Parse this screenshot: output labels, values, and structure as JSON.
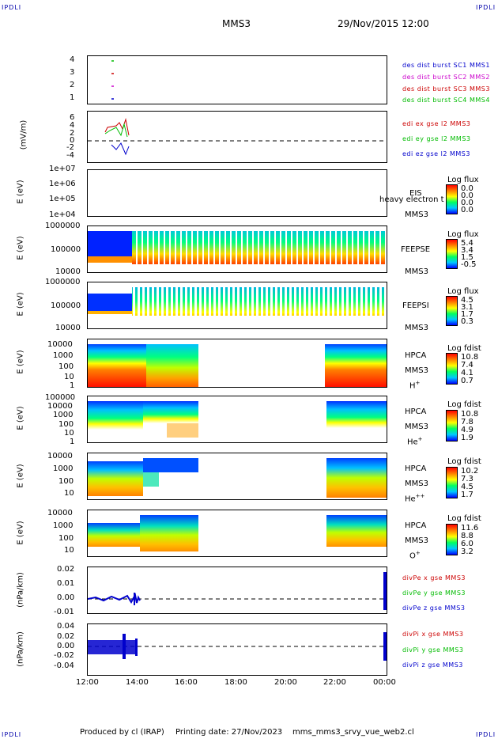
{
  "corners": {
    "tl": "IPDLI",
    "tr": "IPDLI",
    "bl": "IPDLI",
    "br": "IPDLI"
  },
  "header": {
    "title": "MMS3",
    "date": "29/Nov/2015 12:00"
  },
  "x_ticks": [
    "12:00",
    "14:00",
    "16:00",
    "18:00",
    "20:00",
    "22:00",
    "00:00"
  ],
  "footer": {
    "produced": "Produced by cl (IRAP)",
    "printing": "Printing date: 27/Nov/2023",
    "file": "mms_mms3_srvy_vue_web2.cl"
  },
  "colors": {
    "blue": "#0000cc",
    "red": "#cc0000",
    "green": "#00bb00",
    "magenta": "#cc00cc"
  },
  "panels": {
    "p1": {
      "ticks": [
        "4",
        "3",
        "2",
        "1"
      ],
      "legend": [
        "des dist burst SC1 MMS1",
        "des dist burst SC2 MMS2",
        "des dist burst SC3 MMS3",
        "des dist burst SC4 MMS4"
      ]
    },
    "p2": {
      "ylabel": "(mV/m)",
      "ticks": [
        "6",
        "4",
        "2",
        "0",
        "-2",
        "-4"
      ],
      "legend": [
        "edi ex gse l2 MMS3",
        "edi ey gse l2 MMS3",
        "edi ez gse l2 MMS3"
      ]
    },
    "p3": {
      "ylabel": "E (eV)",
      "ticks": [
        "1e+07",
        "1e+06",
        "1e+05",
        "1e+04"
      ],
      "name": "EIS",
      "name2": "MMS3",
      "overlay": "heavy electron to",
      "cb_title": "Log flux",
      "cb": [
        "0.0",
        "0.0",
        "0.0",
        "0.0"
      ]
    },
    "p4": {
      "ylabel": "E (eV)",
      "ticks": [
        "1000000",
        "100000",
        "10000"
      ],
      "name": "FEEPSE",
      "name2": "MMS3",
      "cb_title": "Log flux",
      "cb": [
        "5.4",
        "3.4",
        "1.5",
        "-0.5"
      ]
    },
    "p5": {
      "ylabel": "E (eV)",
      "ticks": [
        "1000000",
        "100000",
        "10000"
      ],
      "name": "FEEPSI",
      "name2": "MMS3",
      "cb_title": "Log flux",
      "cb": [
        "4.5",
        "3.1",
        "1.7",
        "0.3"
      ]
    },
    "p6": {
      "ylabel": "E (eV)",
      "ticks": [
        "10000",
        "1000",
        "100",
        "10",
        "1"
      ],
      "name": "HPCA",
      "name2": "MMS3",
      "species": "H",
      "sup": "+",
      "cb_title": "Log fdist",
      "cb": [
        "10.8",
        "7.4",
        "4.1",
        "0.7"
      ]
    },
    "p7": {
      "ylabel": "E (eV)",
      "ticks": [
        "100000",
        "10000",
        "1000",
        "100",
        "10",
        "1"
      ],
      "name": "HPCA",
      "name2": "MMS3",
      "species": "He",
      "sup": "+",
      "cb_title": "Log fdist",
      "cb": [
        "10.8",
        "7.8",
        "4.9",
        "1.9"
      ]
    },
    "p8": {
      "ylabel": "E (eV)",
      "ticks": [
        "10000",
        "1000",
        "100",
        "10"
      ],
      "name": "HPCA",
      "name2": "MMS3",
      "species": "He",
      "sup": "++",
      "cb_title": "Log fdist",
      "cb": [
        "10.2",
        "7.3",
        "4.5",
        "1.7"
      ]
    },
    "p9": {
      "ylabel": "E (eV)",
      "ticks": [
        "10000",
        "1000",
        "100",
        "10"
      ],
      "name": "HPCA",
      "name2": "MMS3",
      "species": "O",
      "sup": "+",
      "cb_title": "Log fdist",
      "cb": [
        "11.6",
        "8.8",
        "6.0",
        "3.2"
      ]
    },
    "p10": {
      "ylabel": "(nPa/km)",
      "ticks": [
        "0.02",
        "0.01",
        "0.00",
        "-0.01"
      ],
      "legend": [
        "divPe x gse MMS3",
        "divPe y gse MMS3",
        "divPe z gse MMS3"
      ]
    },
    "p11": {
      "ylabel": "(nPa/km)",
      "ticks": [
        "0.04",
        "0.02",
        "0.00",
        "-0.02",
        "-0.04"
      ],
      "legend": [
        "divPi x gse MMS3",
        "divPi y gse MMS3",
        "divPi z gse MMS3"
      ]
    }
  },
  "chart_data": [
    {
      "type": "scatter",
      "title": "",
      "ylabel": "",
      "ylim": [
        1,
        4
      ],
      "series": [
        {
          "name": "des dist burst SC1 MMS1",
          "x": [
            "13:00"
          ],
          "values": [
            1
          ]
        },
        {
          "name": "des dist burst SC2 MMS2",
          "x": [
            "13:00"
          ],
          "values": [
            2
          ]
        },
        {
          "name": "des dist burst SC3 MMS3",
          "x": [
            "13:00"
          ],
          "values": [
            3
          ]
        },
        {
          "name": "des dist burst SC4 MMS4",
          "x": [
            "13:00"
          ],
          "values": [
            4
          ]
        }
      ]
    },
    {
      "type": "line",
      "ylabel": "(mV/m)",
      "ylim": [
        -4,
        6
      ],
      "series": [
        {
          "name": "edi ex gse l2 MMS3",
          "x": [
            "13:00",
            "13:20",
            "13:40"
          ],
          "values": [
            3,
            2,
            5
          ]
        },
        {
          "name": "edi ey gse l2 MMS3",
          "x": [
            "13:00",
            "13:20",
            "13:40"
          ],
          "values": [
            2,
            3,
            1
          ]
        },
        {
          "name": "edi ez gse l2 MMS3",
          "x": [
            "13:00",
            "13:20",
            "13:40"
          ],
          "values": [
            -1,
            -2,
            -3
          ]
        }
      ]
    },
    {
      "type": "heatmap",
      "ylabel": "E (eV)",
      "name": "EIS",
      "colorbar": "Log flux"
    },
    {
      "type": "heatmap",
      "ylabel": "E (eV)",
      "name": "FEEPSE",
      "colorbar": "Log flux"
    },
    {
      "type": "heatmap",
      "ylabel": "E (eV)",
      "name": "FEEPSI",
      "colorbar": "Log flux"
    },
    {
      "type": "heatmap",
      "ylabel": "E (eV)",
      "name": "HPCA H+",
      "colorbar": "Log fdist"
    },
    {
      "type": "heatmap",
      "ylabel": "E (eV)",
      "name": "HPCA He+",
      "colorbar": "Log fdist"
    },
    {
      "type": "heatmap",
      "ylabel": "E (eV)",
      "name": "HPCA He++",
      "colorbar": "Log fdist"
    },
    {
      "type": "heatmap",
      "ylabel": "E (eV)",
      "name": "HPCA O+",
      "colorbar": "Log fdist"
    },
    {
      "type": "line",
      "ylabel": "(nPa/km)",
      "ylim": [
        -0.01,
        0.02
      ],
      "series": [
        {
          "name": "divPe z gse MMS3",
          "x": [
            "12:00",
            "13:00",
            "14:00"
          ],
          "values": [
            0.0,
            0.0,
            0.0
          ]
        }
      ]
    },
    {
      "type": "line",
      "ylabel": "(nPa/km)",
      "ylim": [
        -0.04,
        0.04
      ],
      "series": [
        {
          "name": "divPi z gse MMS3",
          "x": [
            "12:00",
            "13:00",
            "14:00"
          ],
          "values": [
            0.0,
            0.0,
            0.0
          ]
        }
      ]
    }
  ]
}
